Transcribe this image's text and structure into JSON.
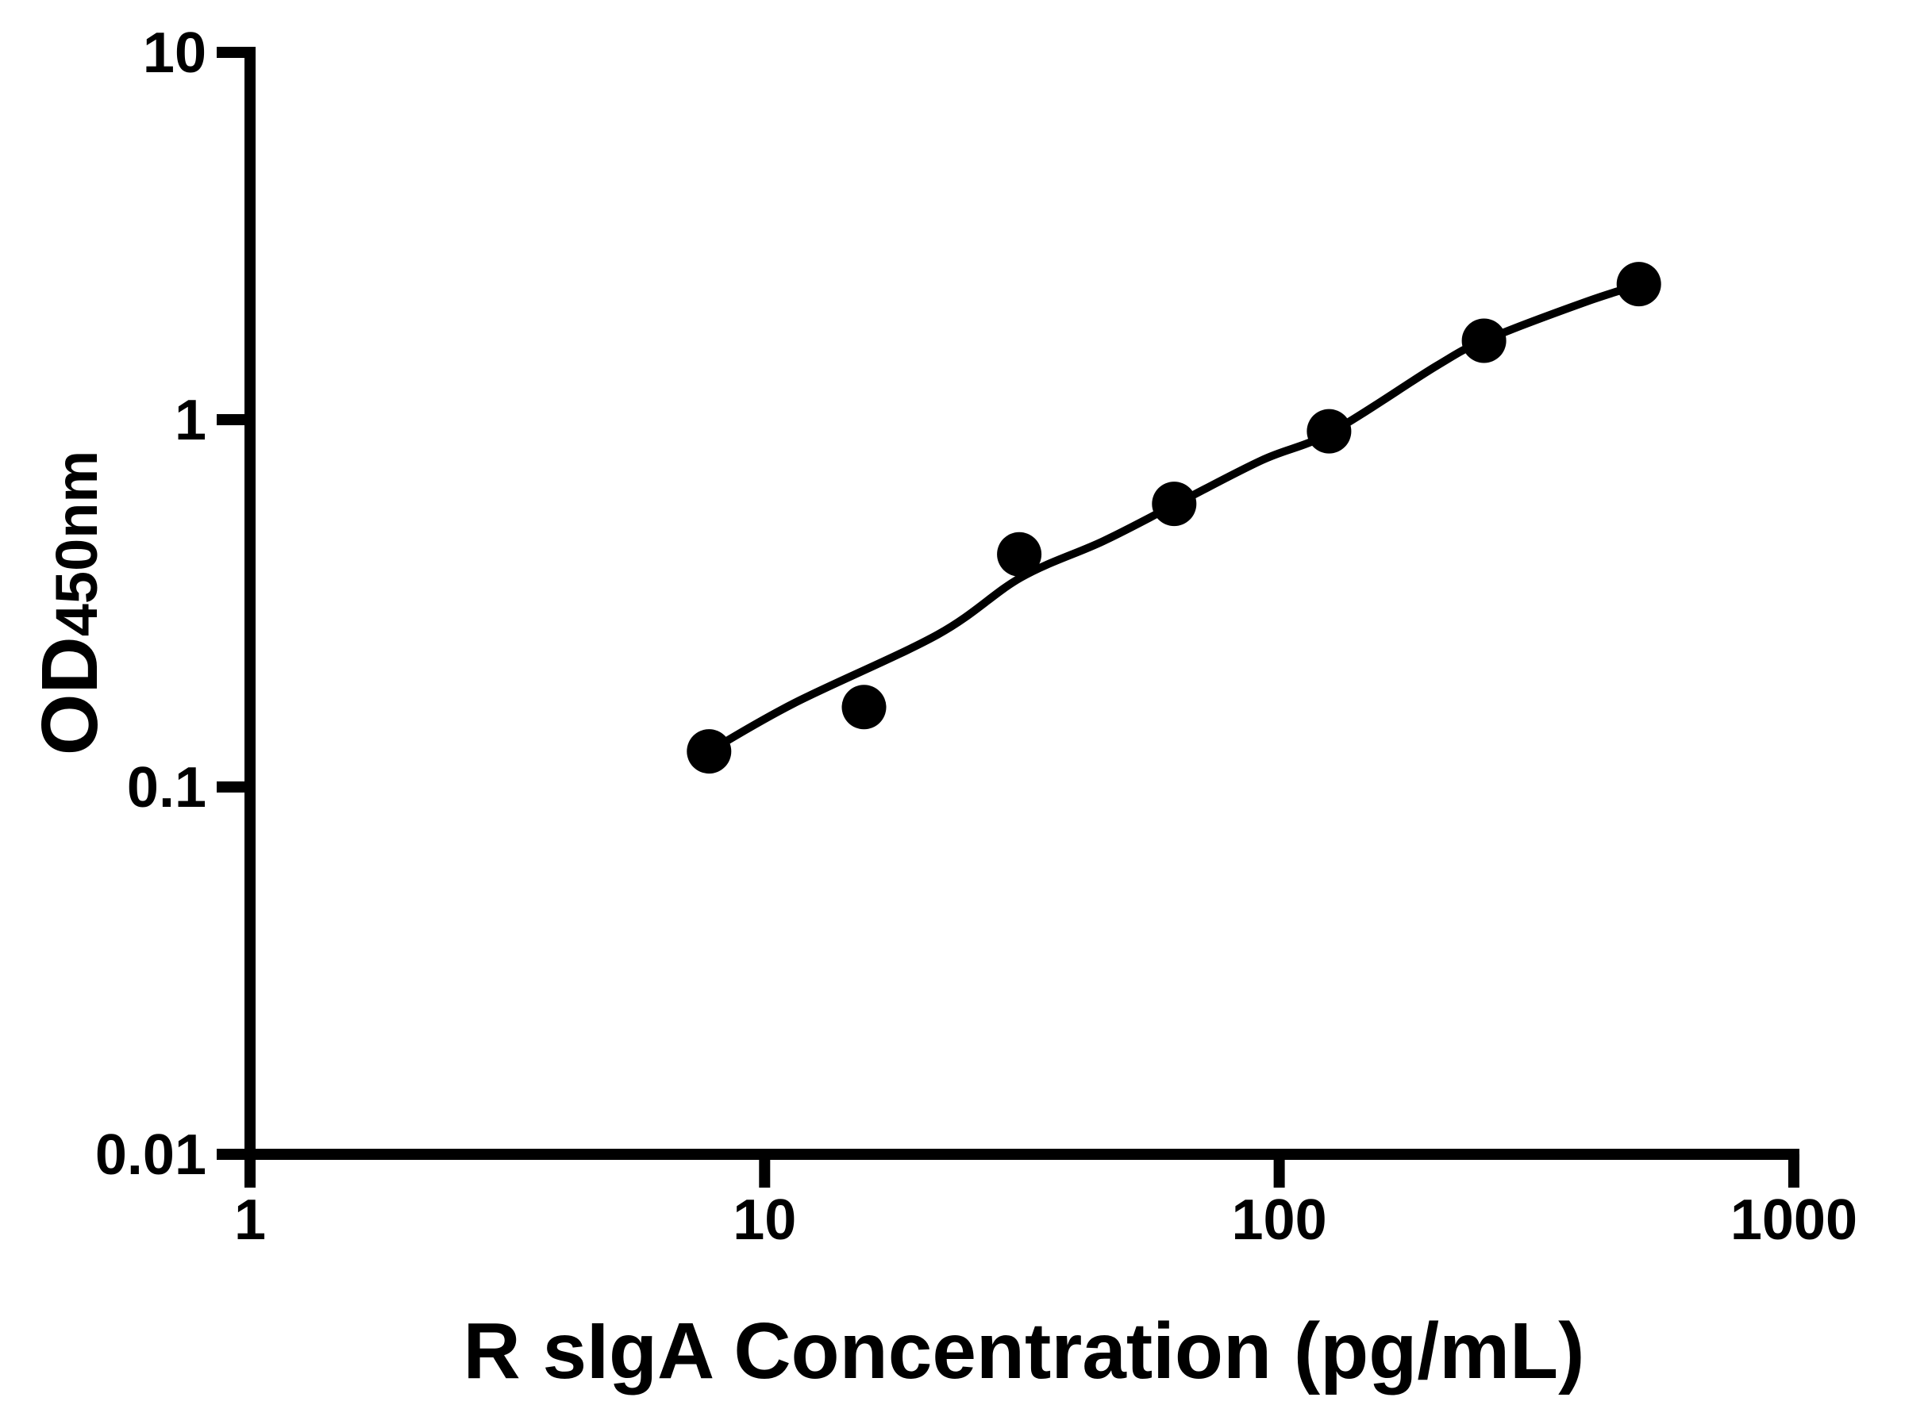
{
  "chart_data": {
    "type": "scatter",
    "title": "",
    "xlabel": "R sIgA Concentration (pg/mL)",
    "ylabel_main": "OD",
    "ylabel_sub": "450nm",
    "x_scale": "log10",
    "y_scale": "log10",
    "xlim": [
      1,
      1000
    ],
    "ylim": [
      0.01,
      10
    ],
    "x_ticks": [
      1,
      10,
      100,
      1000
    ],
    "y_ticks": [
      10,
      1,
      0.1,
      0.01
    ],
    "grid": false,
    "legend": "none",
    "colors": {
      "foreground": "#000000",
      "background": "#ffffff"
    },
    "marker": {
      "shape": "circle",
      "radius_px": 28,
      "color": "#000000"
    },
    "points": [
      {
        "x": 7.8,
        "y": 0.125
      },
      {
        "x": 15.6,
        "y": 0.165
      },
      {
        "x": 31.25,
        "y": 0.43
      },
      {
        "x": 62.5,
        "y": 0.59
      },
      {
        "x": 125,
        "y": 0.93
      },
      {
        "x": 250,
        "y": 1.64
      },
      {
        "x": 500,
        "y": 2.34
      }
    ],
    "fit_curve": [
      [
        7.8,
        0.125
      ],
      [
        11.4,
        0.169
      ],
      [
        21.7,
        0.26
      ],
      [
        31.5,
        0.372
      ],
      [
        45.5,
        0.467
      ],
      [
        63.1,
        0.59
      ],
      [
        92.6,
        0.776
      ],
      [
        126,
        0.923
      ],
      [
        202,
        1.4
      ],
      [
        251,
        1.645
      ],
      [
        397,
        2.1
      ],
      [
        506,
        2.34
      ]
    ]
  }
}
